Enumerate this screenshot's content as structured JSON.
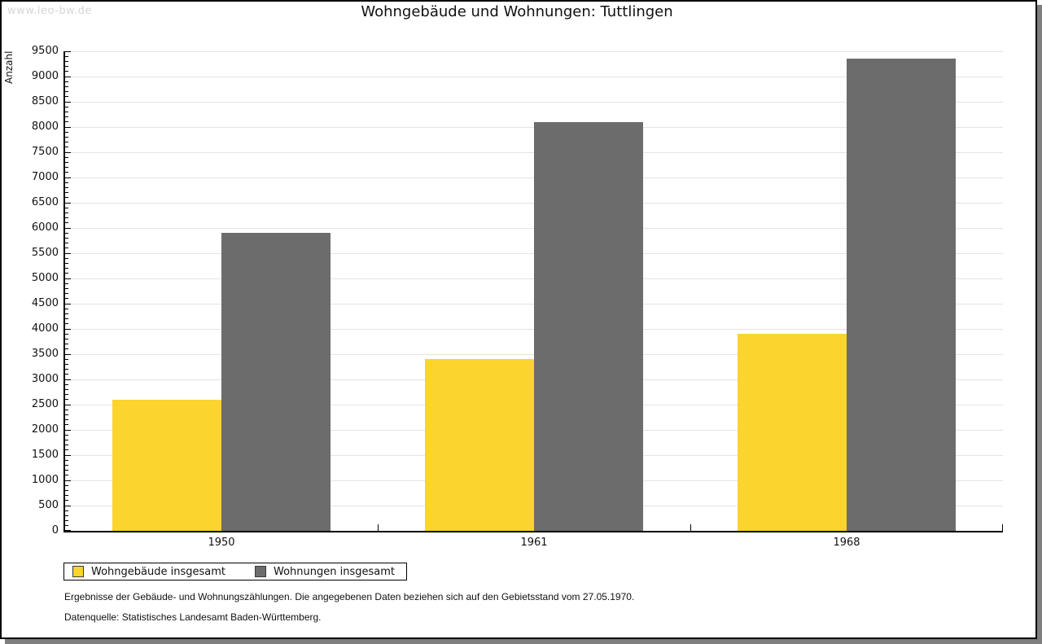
{
  "watermark": "www.leo-bw.de",
  "title": "Wohngebäude und Wohnungen: Tuttlingen",
  "chart_data": {
    "type": "bar",
    "title": "Wohngebäude und Wohnungen: Tuttlingen",
    "xlabel": "",
    "ylabel": "Anzahl",
    "categories": [
      "1950",
      "1961",
      "1968"
    ],
    "series": [
      {
        "name": "Wohngebäude insgesamt",
        "color": "#fbd42d",
        "values": [
          2600,
          3400,
          3900
        ]
      },
      {
        "name": "Wohnungen insgesamt",
        "color": "#6c6c6c",
        "values": [
          5900,
          8100,
          9350
        ]
      }
    ],
    "ylim": [
      0,
      9500
    ],
    "ytick_step": 500,
    "yminor_tick_step": 100,
    "grid": true,
    "legend_position": "bottom-left"
  },
  "footnotes": [
    "Ergebnisse der Gebäude- und Wohnungszählungen. Die angegebenen Daten beziehen sich auf den Gebietsstand vom 27.05.1970.",
    "Datenquelle: Statistisches Landesamt Baden-Württemberg."
  ],
  "colors": {
    "series1": "#fbd42d",
    "series2": "#6c6c6c",
    "gridline": "#e4e4e4",
    "axis": "#000000",
    "watermark": "#d5d5d5",
    "shadow": "#7f7f7f"
  }
}
